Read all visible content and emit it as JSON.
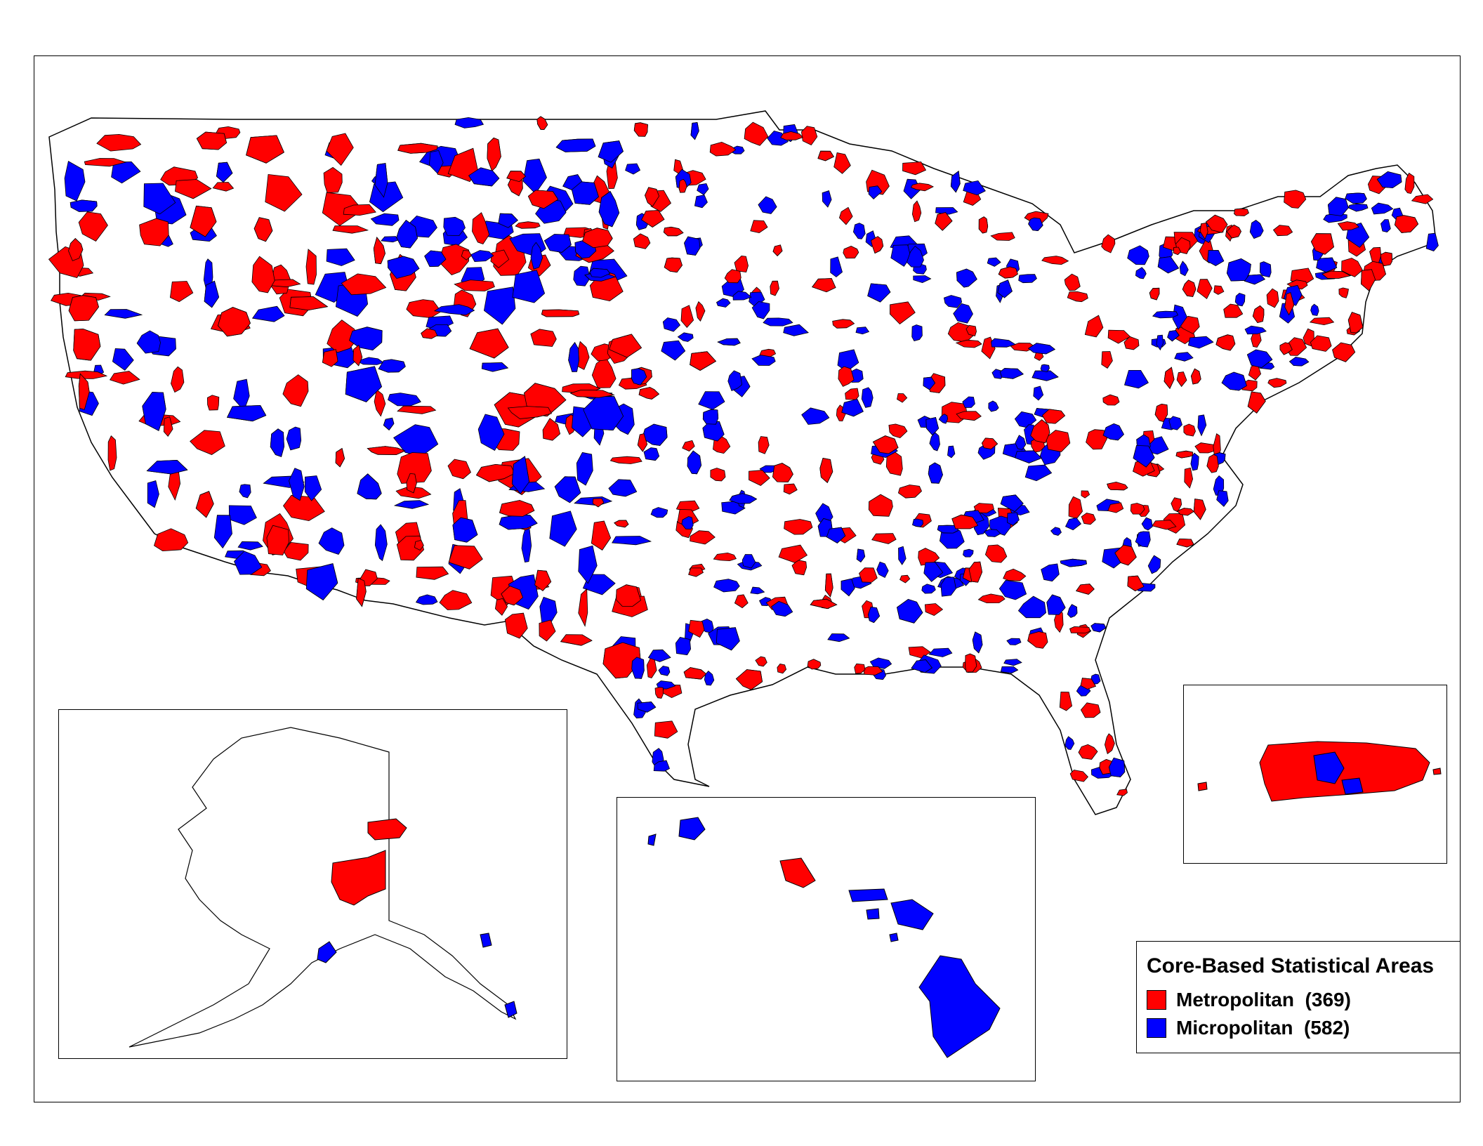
{
  "legend": {
    "title": "Core-Based Statistical Areas",
    "items": [
      {
        "label": "Metropolitan  (369)",
        "color": "#ff0000"
      },
      {
        "label": "Micropolitan  (582)",
        "color": "#0000ff"
      }
    ]
  },
  "colors": {
    "metropolitan": "#ff0000",
    "micropolitan": "#0000ff",
    "outline": "#000000",
    "background": "#ffffff"
  },
  "insets": [
    "Alaska",
    "Hawaii",
    "Puerto Rico"
  ]
}
